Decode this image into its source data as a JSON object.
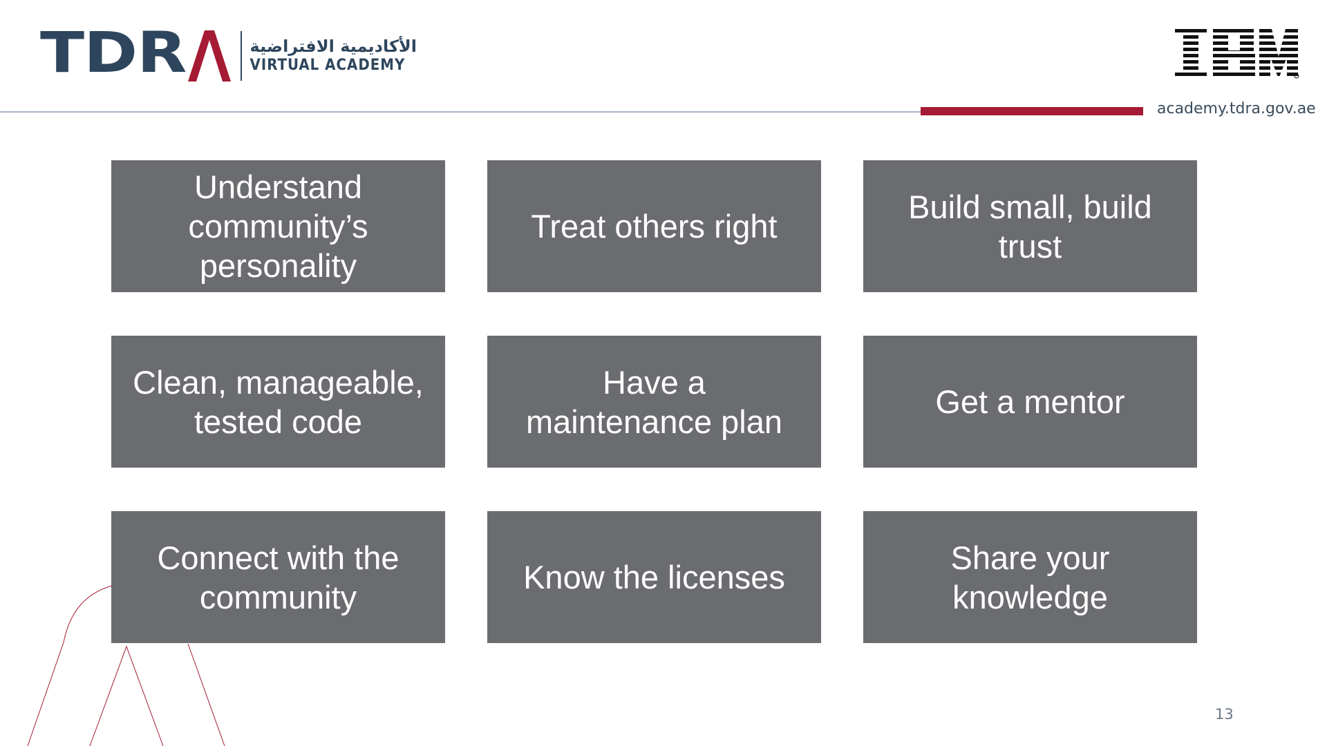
{
  "header": {
    "logo_text": "TDRA",
    "academy_arabic": "الأكاديمية الافتراضية",
    "academy_english": "VIRTUAL ACADEMY",
    "partner_logo": "IBM",
    "site_url": "academy.tdra.gov.ae"
  },
  "tiles": [
    {
      "label": "Understand community’s personality"
    },
    {
      "label": "Treat others right"
    },
    {
      "label": "Build small, build trust"
    },
    {
      "label": "Clean, manageable, tested code"
    },
    {
      "label": "Have a maintenance plan"
    },
    {
      "label": "Get a mentor"
    },
    {
      "label": "Connect with the community"
    },
    {
      "label": "Know the licenses"
    },
    {
      "label": "Share your knowledge"
    }
  ],
  "page_number": "13",
  "colors": {
    "brand_navy": "#2e465d",
    "brand_red": "#a51b33",
    "tile_gray": "#6b6c70",
    "rule_light": "#a9b7c6"
  },
  "icons": {
    "tdra_logo": "tdra-logo-icon",
    "ibm_logo": "ibm-logo-icon",
    "decoration": "decorative-lines-icon"
  }
}
